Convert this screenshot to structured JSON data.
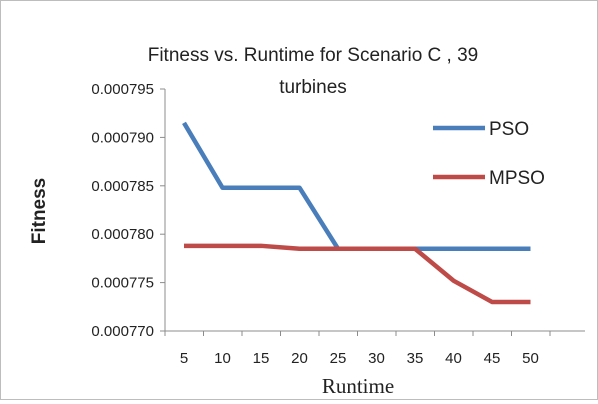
{
  "chart_data": {
    "type": "line",
    "title_line1": "Fitness vs. Runtime for Scenario C , 39",
    "title_line2": "turbines",
    "xlabel": "Runtime",
    "ylabel": "Fitness",
    "x": [
      5,
      10,
      15,
      20,
      25,
      30,
      35,
      40,
      45,
      50
    ],
    "x_tick_labels": [
      "5",
      "10",
      "15",
      "20",
      "25",
      "30",
      "35",
      "40",
      "45",
      "50"
    ],
    "ylim": [
      0.00077,
      0.000795
    ],
    "y_ticks": [
      0.00077,
      0.000775,
      0.00078,
      0.000785,
      0.00079,
      0.000795
    ],
    "y_tick_labels": [
      "0.000770",
      "0.000775",
      "0.000780",
      "0.000785",
      "0.000790",
      "0.000795"
    ],
    "grid": false,
    "legend_position": "right",
    "series": [
      {
        "name": "PSO",
        "color": "#4a7ebb",
        "values": [
          0.0007915,
          0.0007848,
          0.0007848,
          0.0007848,
          0.0007785,
          0.0007785,
          0.0007785,
          0.0007785,
          0.0007785,
          0.0007785
        ]
      },
      {
        "name": "MPSO",
        "color": "#be4b48",
        "values": [
          0.0007788,
          0.0007788,
          0.0007788,
          0.0007785,
          0.0007785,
          0.0007785,
          0.0007785,
          0.0007752,
          0.000773,
          0.000773
        ]
      }
    ]
  }
}
